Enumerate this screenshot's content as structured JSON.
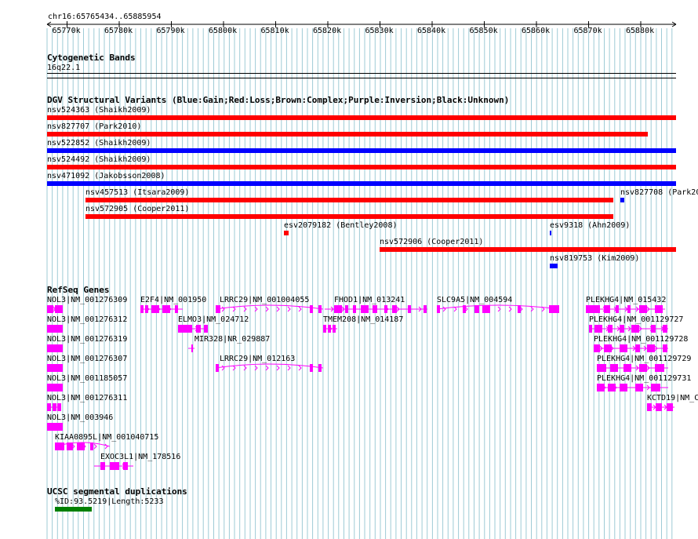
{
  "locus": "chr16:65765434..65885954",
  "ruler_ticks": [
    "65770k",
    "65780k",
    "65790k",
    "65800k",
    "65810k",
    "65820k",
    "65830k",
    "65840k",
    "65850k",
    "65860k",
    "65870k",
    "65880k"
  ],
  "colors": {
    "grid": "#9ecbd6",
    "gain": "#0000ff",
    "loss": "#ff0000",
    "gene": "#ff00ff",
    "segdup": "#008000"
  },
  "tracks": {
    "cytoband": {
      "title": "Cytogenetic Bands",
      "band": "16q22.1"
    },
    "dgv": {
      "title": "DGV Structural Variants (Blue:Gain;Red:Loss;Brown:Complex;Purple:Inversion;Black:Unknown)",
      "variants": [
        {
          "label": "nsv524363 (Shaikh2009)",
          "type": "loss"
        },
        {
          "label": "nsv827707 (Park2010)",
          "type": "loss"
        },
        {
          "label": "nsv522852 (Shaikh2009)",
          "type": "gain"
        },
        {
          "label": "nsv524492 (Shaikh2009)",
          "type": "loss"
        },
        {
          "label": "nsv471092 (Jakobsson2008)",
          "type": "gain"
        },
        {
          "label": "nsv457513 (Itsara2009)",
          "type": "loss"
        },
        {
          "label": "nsv827708 (Park20",
          "type": "gain"
        },
        {
          "label": "nsv572905 (Cooper2011)",
          "type": "loss"
        },
        {
          "label": "esv2079182 (Bentley2008)",
          "type": "loss"
        },
        {
          "label": "esv9318 (Ahn2009)",
          "type": "gain"
        },
        {
          "label": "nsv572906 (Cooper2011)",
          "type": "loss"
        },
        {
          "label": "nsv819753 (Kim2009)",
          "type": "gain"
        }
      ]
    },
    "refseq": {
      "title": "RefSeq Genes",
      "genes": [
        {
          "label": "NOL3|NM_001276309"
        },
        {
          "label": "E2F4|NM_001950"
        },
        {
          "label": "LRRC29|NM_001004055"
        },
        {
          "label": "FHOD1|NM_013241"
        },
        {
          "label": "SLC9A5|NM_004594"
        },
        {
          "label": "PLEKHG4|NM_015432"
        },
        {
          "label": "NOL3|NM_001276312"
        },
        {
          "label": "ELMO3|NM_024712"
        },
        {
          "label": "TMEM208|NM_014187"
        },
        {
          "label": "PLEKHG4|NM_001129727"
        },
        {
          "label": "NOL3|NM_001276319"
        },
        {
          "label": "MIR328|NR_029887"
        },
        {
          "label": "PLEKHG4|NM_001129728"
        },
        {
          "label": "NOL3|NM_001276307"
        },
        {
          "label": "LRRC29|NM_012163"
        },
        {
          "label": "PLEKHG4|NM_001129729"
        },
        {
          "label": "NOL3|NM_001185057"
        },
        {
          "label": "PLEKHG4|NM_001129731"
        },
        {
          "label": "NOL3|NM_001276311"
        },
        {
          "label": "KCTD19|NM_C"
        },
        {
          "label": "NOL3|NM_003946"
        },
        {
          "label": "KIAA0895L|NM_001040715"
        },
        {
          "label": "EXOC3L1|NM_178516"
        }
      ]
    },
    "segdup": {
      "title": "UCSC segmental duplications",
      "feature": "%ID:93.5219|Length:5233"
    }
  }
}
